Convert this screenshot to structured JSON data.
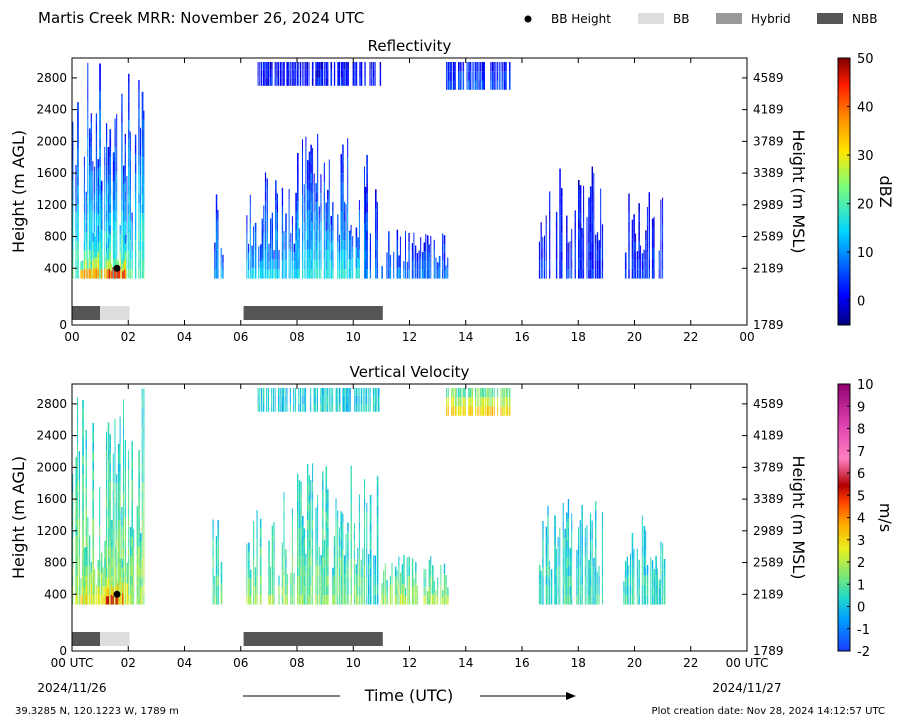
{
  "header": {
    "title": "Martis Creek MRR:  November 26, 2024 UTC",
    "legend": [
      {
        "label": "BB Height",
        "kind": "dot",
        "color": "#000000"
      },
      {
        "label": "BB",
        "kind": "patch",
        "color": "#dddddd"
      },
      {
        "label": "Hybrid",
        "kind": "patch",
        "color": "#999999"
      },
      {
        "label": "NBB",
        "kind": "patch",
        "color": "#555555"
      }
    ]
  },
  "footer": {
    "location": "39.3285 N, 120.1223 W, 1789 m",
    "created": "Plot creation date: Nov 28, 2024 14:12:57 UTC",
    "xlabel": "Time (UTC)",
    "date_left": "2024/11/26",
    "date_right": "2024/11/27"
  },
  "chart_data": [
    {
      "type": "heatmap",
      "title": "Reflectivity",
      "ylabel": "Height (m AGL)",
      "ylabel_right": "Height (m MSL)",
      "colorbar_label": "dBZ",
      "colorbar_range": [
        -5,
        50
      ],
      "colorbar_ticks": [
        "0",
        "10",
        "20",
        "30",
        "40",
        "50"
      ],
      "colorbar_tick_values": [
        0,
        10,
        20,
        30,
        40,
        50
      ],
      "xlim": [
        0,
        24
      ],
      "ylim": [
        0,
        3000
      ],
      "x_ticks": [
        "00",
        "02",
        "04",
        "06",
        "08",
        "10",
        "12",
        "14",
        "16",
        "18",
        "20",
        "22",
        "00"
      ],
      "y_ticks": [
        "0",
        "400",
        "800",
        "1200",
        "1600",
        "2000",
        "2400",
        "2800"
      ],
      "y_ticks_right": [
        "1789",
        "2189",
        "2589",
        "2989",
        "3389",
        "3789",
        "4189",
        "4589"
      ],
      "bb_height": [
        {
          "x": 1.6,
          "y": 400
        }
      ],
      "bb_type_bar": [
        {
          "start": 0.0,
          "end": 1.0,
          "type": "NBB"
        },
        {
          "start": 1.0,
          "end": 2.05,
          "type": "BB"
        },
        {
          "start": 6.1,
          "end": 11.05,
          "type": "NBB"
        }
      ],
      "echo_regions": [
        {
          "x0": 0.0,
          "x1": 2.6,
          "top": 3000,
          "core": 20
        },
        {
          "x0": 0.3,
          "x1": 2.0,
          "top": 1000,
          "core": 35
        },
        {
          "x0": 1.2,
          "x1": 1.9,
          "top": 700,
          "core": 45
        },
        {
          "x0": 5.0,
          "x1": 5.4,
          "top": 1400,
          "core": 12
        },
        {
          "x0": 6.2,
          "x1": 8.0,
          "top": 1700,
          "core": 14
        },
        {
          "x0": 8.0,
          "x1": 10.5,
          "top": 2100,
          "core": 16
        },
        {
          "x0": 10.4,
          "x1": 10.9,
          "top": 2200,
          "core": 8
        },
        {
          "x0": 11.0,
          "x1": 13.4,
          "top": 900,
          "core": 8
        },
        {
          "x0": 16.6,
          "x1": 18.9,
          "top": 1700,
          "core": 4
        },
        {
          "x0": 19.6,
          "x1": 21.1,
          "top": 1400,
          "core": 4
        },
        {
          "x0": 13.3,
          "x1": 15.6,
          "top": 3000,
          "bottom": 2650,
          "core": 5
        },
        {
          "x0": 6.6,
          "x1": 11.0,
          "top": 3000,
          "bottom": 2700,
          "core": 2
        }
      ]
    },
    {
      "type": "heatmap",
      "title": "Vertical Velocity",
      "ylabel": "Height (m AGL)",
      "ylabel_right": "Height (m MSL)",
      "colorbar_label": "m/s",
      "colorbar_range": [
        -2,
        10
      ],
      "colorbar_ticks": [
        "-2",
        "-1",
        "0",
        "1",
        "2",
        "3",
        "4",
        "5",
        "6",
        "7",
        "8",
        "9",
        "10"
      ],
      "colorbar_tick_values": [
        -2,
        -1,
        0,
        1,
        2,
        3,
        4,
        5,
        6,
        7,
        8,
        9,
        10
      ],
      "xlim": [
        0,
        24
      ],
      "ylim": [
        0,
        3000
      ],
      "x_ticks": [
        "00 UTC",
        "02",
        "04",
        "06",
        "08",
        "10",
        "12",
        "14",
        "16",
        "18",
        "20",
        "22",
        "00 UTC"
      ],
      "y_ticks": [
        "0",
        "400",
        "800",
        "1200",
        "1600",
        "2000",
        "2400",
        "2800"
      ],
      "y_ticks_right": [
        "1789",
        "2189",
        "2589",
        "2989",
        "3389",
        "3789",
        "4189",
        "4589"
      ],
      "bb_height": [
        {
          "x": 1.6,
          "y": 400
        }
      ],
      "bb_type_bar": [
        {
          "start": 0.0,
          "end": 1.0,
          "type": "NBB"
        },
        {
          "start": 1.0,
          "end": 2.05,
          "type": "BB"
        },
        {
          "start": 6.1,
          "end": 11.05,
          "type": "NBB"
        }
      ],
      "echo_regions": [
        {
          "x0": 0.0,
          "x1": 2.6,
          "top": 3000,
          "core": 1.8
        },
        {
          "x0": 0.3,
          "x1": 2.0,
          "top": 1000,
          "core": 2.8
        },
        {
          "x0": 1.2,
          "x1": 1.9,
          "top": 600,
          "core": 5.5
        },
        {
          "x0": 5.0,
          "x1": 5.4,
          "top": 1400,
          "core": 1.2
        },
        {
          "x0": 6.2,
          "x1": 8.0,
          "top": 1700,
          "core": 1.6
        },
        {
          "x0": 8.0,
          "x1": 10.5,
          "top": 2100,
          "core": 1.4
        },
        {
          "x0": 10.4,
          "x1": 10.9,
          "top": 2200,
          "core": 0.4
        },
        {
          "x0": 11.0,
          "x1": 13.4,
          "top": 900,
          "core": 1.8
        },
        {
          "x0": 16.6,
          "x1": 18.9,
          "top": 1700,
          "core": 0.6
        },
        {
          "x0": 19.6,
          "x1": 21.1,
          "top": 1400,
          "core": 0.6
        },
        {
          "x0": 13.3,
          "x1": 15.6,
          "top": 3000,
          "bottom": 2650,
          "core": 3.0
        },
        {
          "x0": 6.6,
          "x1": 11.0,
          "top": 3000,
          "bottom": 2700,
          "core": 0.2
        }
      ]
    }
  ]
}
